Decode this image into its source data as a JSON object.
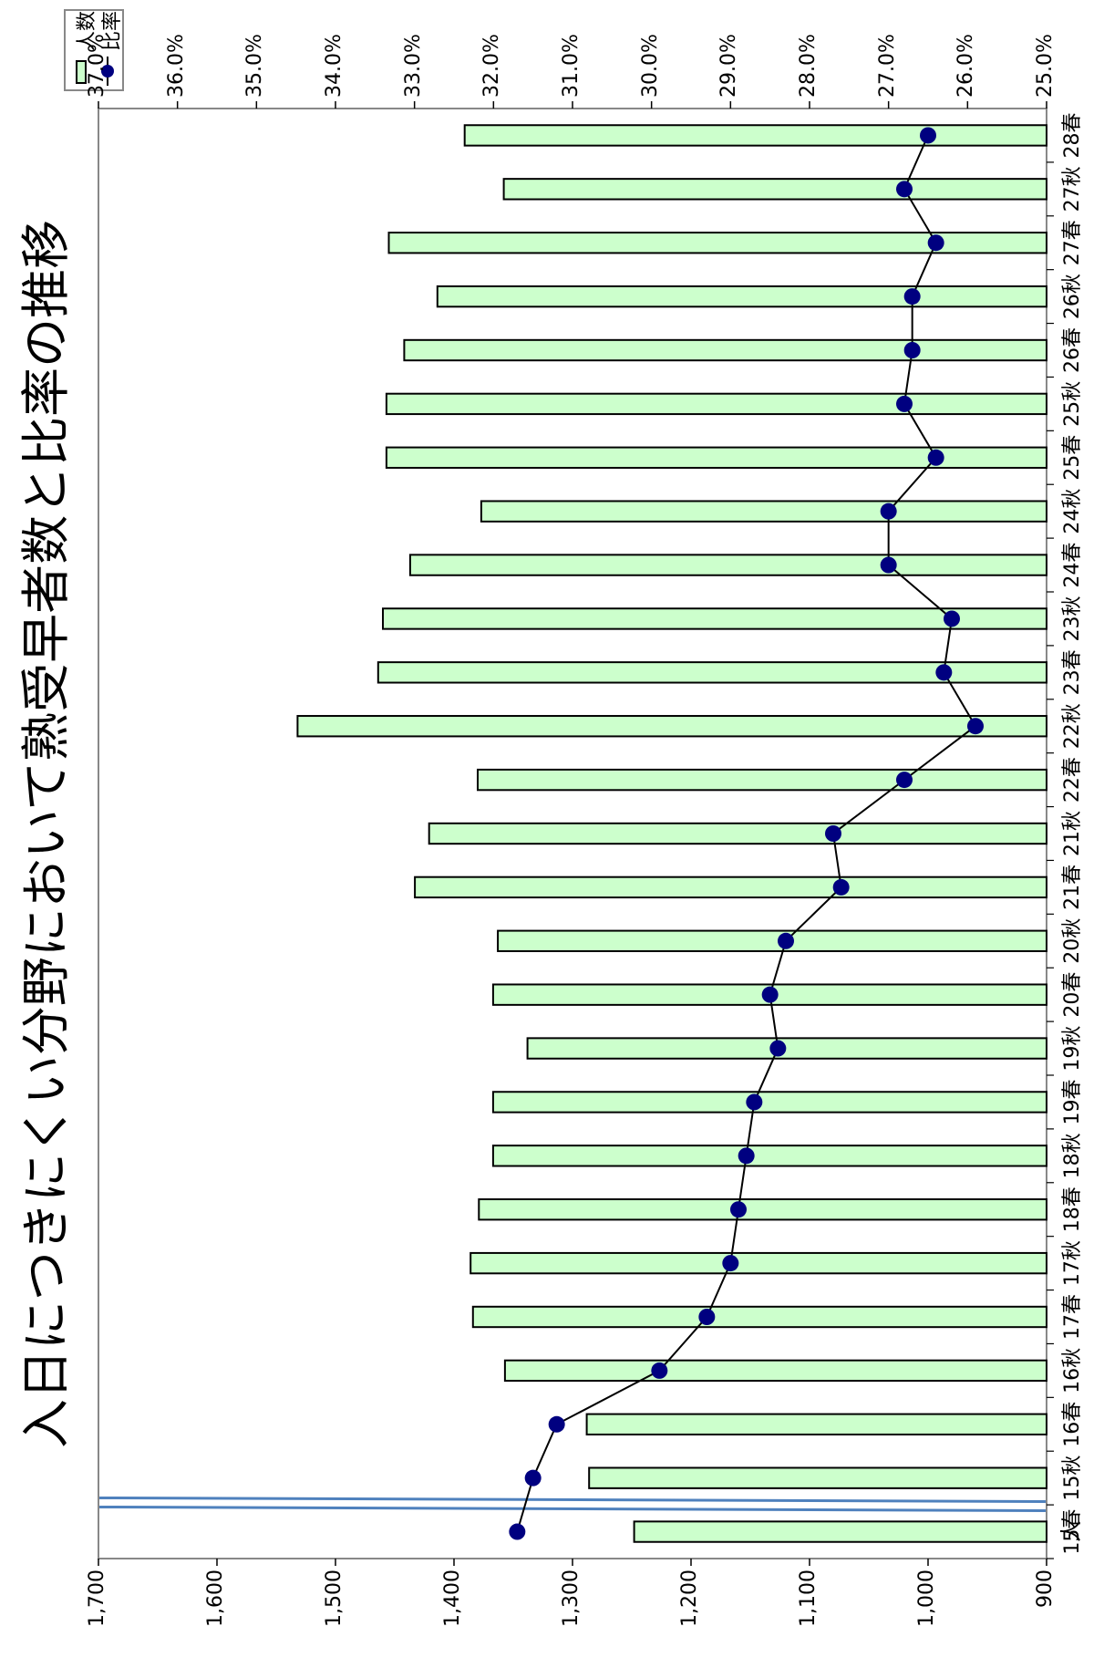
{
  "chart_data": {
    "type": "bar",
    "title": "入日につきにくい分野において熟受早者数と比率の推移",
    "y_left_label": "人",
    "y_left_ticks": [
      "900",
      "1,000",
      "1,100",
      "1,200",
      "1,300",
      "1,400",
      "1,500",
      "1,600",
      "1,700"
    ],
    "y_left_lim": [
      900,
      1700
    ],
    "y_right_ticks": [
      "25.0%",
      "26.0%",
      "27.0%",
      "28.0%",
      "29.0%",
      "30.0%",
      "31.0%",
      "32.0%",
      "33.0%",
      "34.0%",
      "35.0%",
      "36.0%",
      "37.0%"
    ],
    "y_right_lim": [
      25.0,
      37.0
    ],
    "categories": [
      "15春",
      "15秋",
      "16春",
      "16秋",
      "17春",
      "17秋",
      "18春",
      "18秋",
      "19春",
      "19秋",
      "20春",
      "20秋",
      "21春",
      "21秋",
      "22春",
      "22秋",
      "23春",
      "23秋",
      "24春",
      "24秋",
      "25春",
      "25秋",
      "26春",
      "26秋",
      "27春",
      "27秋",
      "28春"
    ],
    "series": [
      {
        "name": "人数",
        "kind": "bar",
        "color": "#ccffcc",
        "values": [
          1248,
          1286,
          1288,
          1357,
          1384,
          1386,
          1379,
          1367,
          1367,
          1338,
          1367,
          1363,
          1433,
          1421,
          1380,
          1532,
          1464,
          1460,
          1437,
          1377,
          1457,
          1457,
          1442,
          1414,
          1455,
          1358,
          1391
        ]
      },
      {
        "name": "比率",
        "kind": "line",
        "color": "#000080",
        "values": [
          31.7,
          31.5,
          31.2,
          29.9,
          29.3,
          29.0,
          28.9,
          28.8,
          28.7,
          28.4,
          28.5,
          28.3,
          27.6,
          27.7,
          26.8,
          25.9,
          26.3,
          26.2,
          27.0,
          27.0,
          26.4,
          26.8,
          26.7,
          26.7,
          26.4,
          26.8,
          26.5
        ]
      }
    ],
    "legend": "top-right"
  }
}
